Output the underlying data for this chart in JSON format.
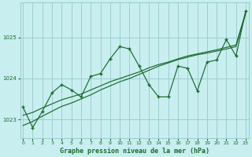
{
  "title": "Graphe pression niveau de la mer (hPa)",
  "bg_color": "#c8eef0",
  "grid_color": "#9ecece",
  "line_color": "#1a6b2a",
  "x_ticks": [
    0,
    1,
    2,
    3,
    4,
    5,
    6,
    7,
    8,
    9,
    10,
    11,
    12,
    13,
    14,
    15,
    16,
    17,
    18,
    19,
    20,
    21,
    22,
    23
  ],
  "y_ticks": [
    1023,
    1024,
    1025
  ],
  "ylim": [
    1022.55,
    1025.85
  ],
  "xlim": [
    -0.3,
    23.3
  ],
  "main_line": [
    1023.3,
    1022.8,
    1023.2,
    1023.65,
    1023.85,
    1023.72,
    1023.55,
    1024.05,
    1024.12,
    1024.48,
    1024.78,
    1024.72,
    1024.3,
    1023.85,
    1023.55,
    1023.55,
    1024.3,
    1024.25,
    1023.7,
    1024.4,
    1024.45,
    1024.95,
    1024.55,
    1025.65
  ],
  "trend1": [
    1023.1,
    1023.17,
    1023.28,
    1023.38,
    1023.48,
    1023.55,
    1023.62,
    1023.72,
    1023.82,
    1023.92,
    1024.0,
    1024.08,
    1024.16,
    1024.26,
    1024.34,
    1024.4,
    1024.48,
    1024.55,
    1024.6,
    1024.65,
    1024.7,
    1024.76,
    1024.82,
    1025.62
  ],
  "trend2": [
    1022.85,
    1022.95,
    1023.08,
    1023.2,
    1023.32,
    1023.4,
    1023.5,
    1023.6,
    1023.72,
    1023.82,
    1023.92,
    1024.0,
    1024.1,
    1024.2,
    1024.3,
    1024.38,
    1024.46,
    1024.52,
    1024.58,
    1024.62,
    1024.67,
    1024.72,
    1024.78,
    1025.58
  ]
}
